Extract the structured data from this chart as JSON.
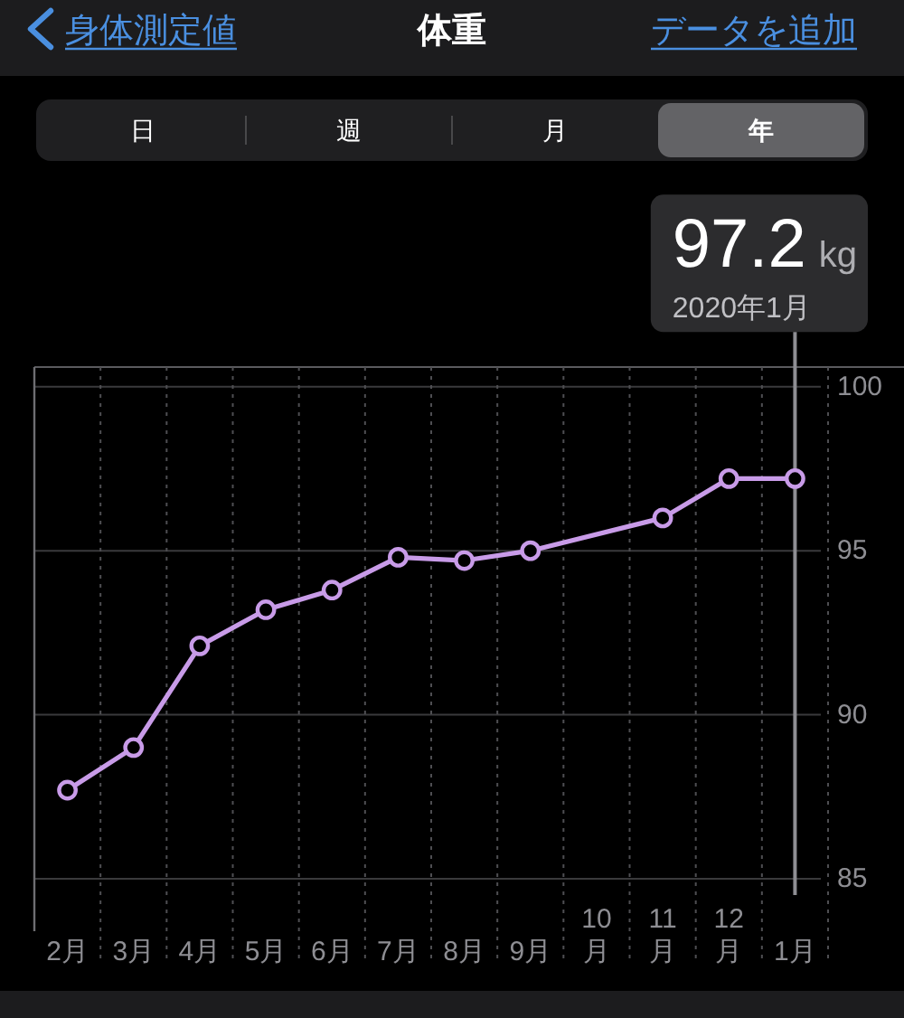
{
  "chart_data": {
    "type": "line",
    "title": "体重",
    "annotations": [
      "身体測定値",
      "データを追加",
      "日",
      "週",
      "月",
      "年",
      {
        "text": "97.2 kg",
        "x": "1月",
        "y": 97.2
      },
      "2020年1月"
    ],
    "categories": [
      "2月",
      "3月",
      "4月",
      "5月",
      "6月",
      "7月",
      "8月",
      "9月",
      "10月",
      "11月",
      "12月",
      "1月"
    ],
    "series": [
      {
        "color": "#c89be8",
        "values": [
          87.7,
          89.0,
          92.1,
          93.2,
          93.8,
          94.8,
          94.7,
          95.0,
          null,
          96.0,
          97.2,
          97.2
        ]
      }
    ],
    "ylim": [
      83.4,
      100.6
    ],
    "yticks": [
      85,
      90,
      95,
      100
    ],
    "grid": true,
    "marker": "circle",
    "line_style": "solid"
  }
}
